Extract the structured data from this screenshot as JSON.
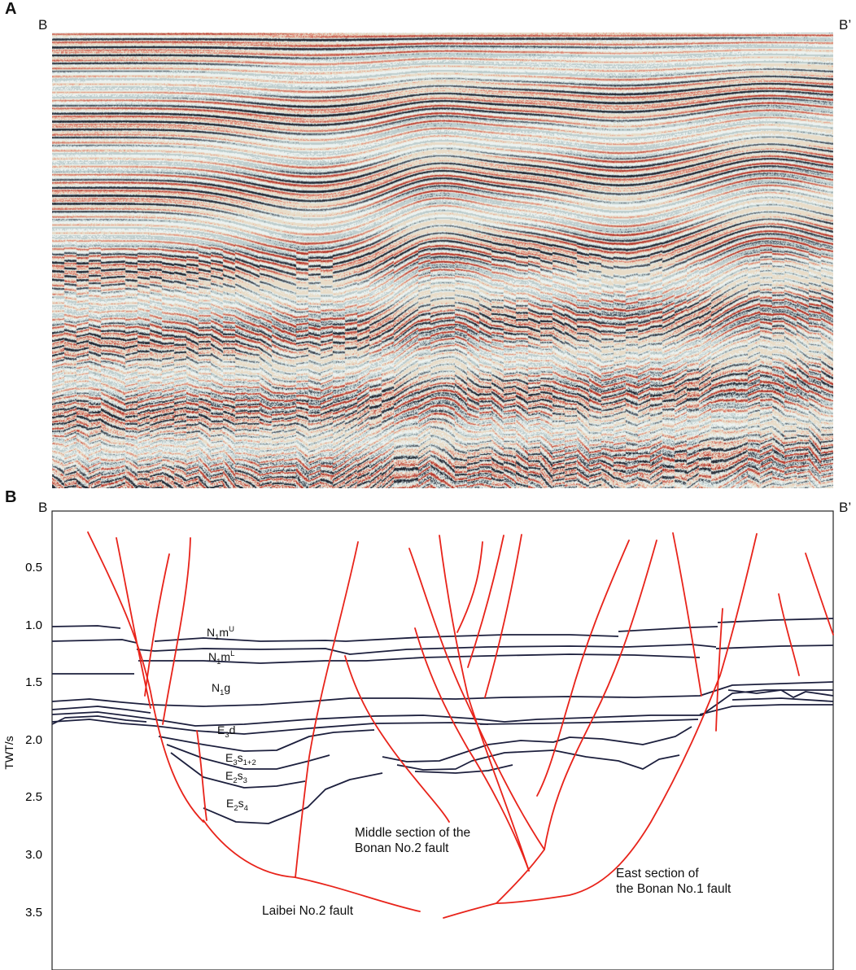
{
  "panel_a": {
    "letter": "A",
    "left_end": "B",
    "right_end": "B’"
  },
  "panel_b": {
    "letter": "B",
    "left_end": "B",
    "right_end": "B’",
    "y_axis": {
      "label": "TWT/s",
      "ticks": [
        "0.5",
        "1.0",
        "1.5",
        "2.0",
        "2.5",
        "3.0",
        "3.5"
      ],
      "range": [
        0.1,
        4.05
      ]
    },
    "formations": [
      {
        "base": "N",
        "sub": "1",
        "mid": "m",
        "sup": "U",
        "tail": "",
        "tail_sub": ""
      },
      {
        "base": "N",
        "sub": "1",
        "mid": "m",
        "sup": "L",
        "tail": "",
        "tail_sub": ""
      },
      {
        "base": "N",
        "sub": "1",
        "mid": "g",
        "sup": "",
        "tail": "",
        "tail_sub": ""
      },
      {
        "base": "E",
        "sub": "3",
        "mid": "d",
        "sup": "",
        "tail": "",
        "tail_sub": ""
      },
      {
        "base": "E",
        "sub": "3",
        "mid": "s",
        "sup": "",
        "tail": "",
        "tail_sub": "1+2"
      },
      {
        "base": "E",
        "sub": "2",
        "mid": "s",
        "sup": "",
        "tail": "",
        "tail_sub": "3"
      },
      {
        "base": "E",
        "sub": "2",
        "mid": "s",
        "sup": "",
        "tail": "",
        "tail_sub": "4"
      }
    ],
    "fault_labels": {
      "middle_line1": "Middle section of the",
      "middle_line2": "Bonan No.2 fault",
      "east_line1": "East section of",
      "east_line2": "the Bonan No.1 fault",
      "laibei": "Laibei No.2 fault"
    },
    "colors": {
      "fault": "#e8231a",
      "horizon": "#1c1f3d",
      "frame": "#222222"
    }
  }
}
